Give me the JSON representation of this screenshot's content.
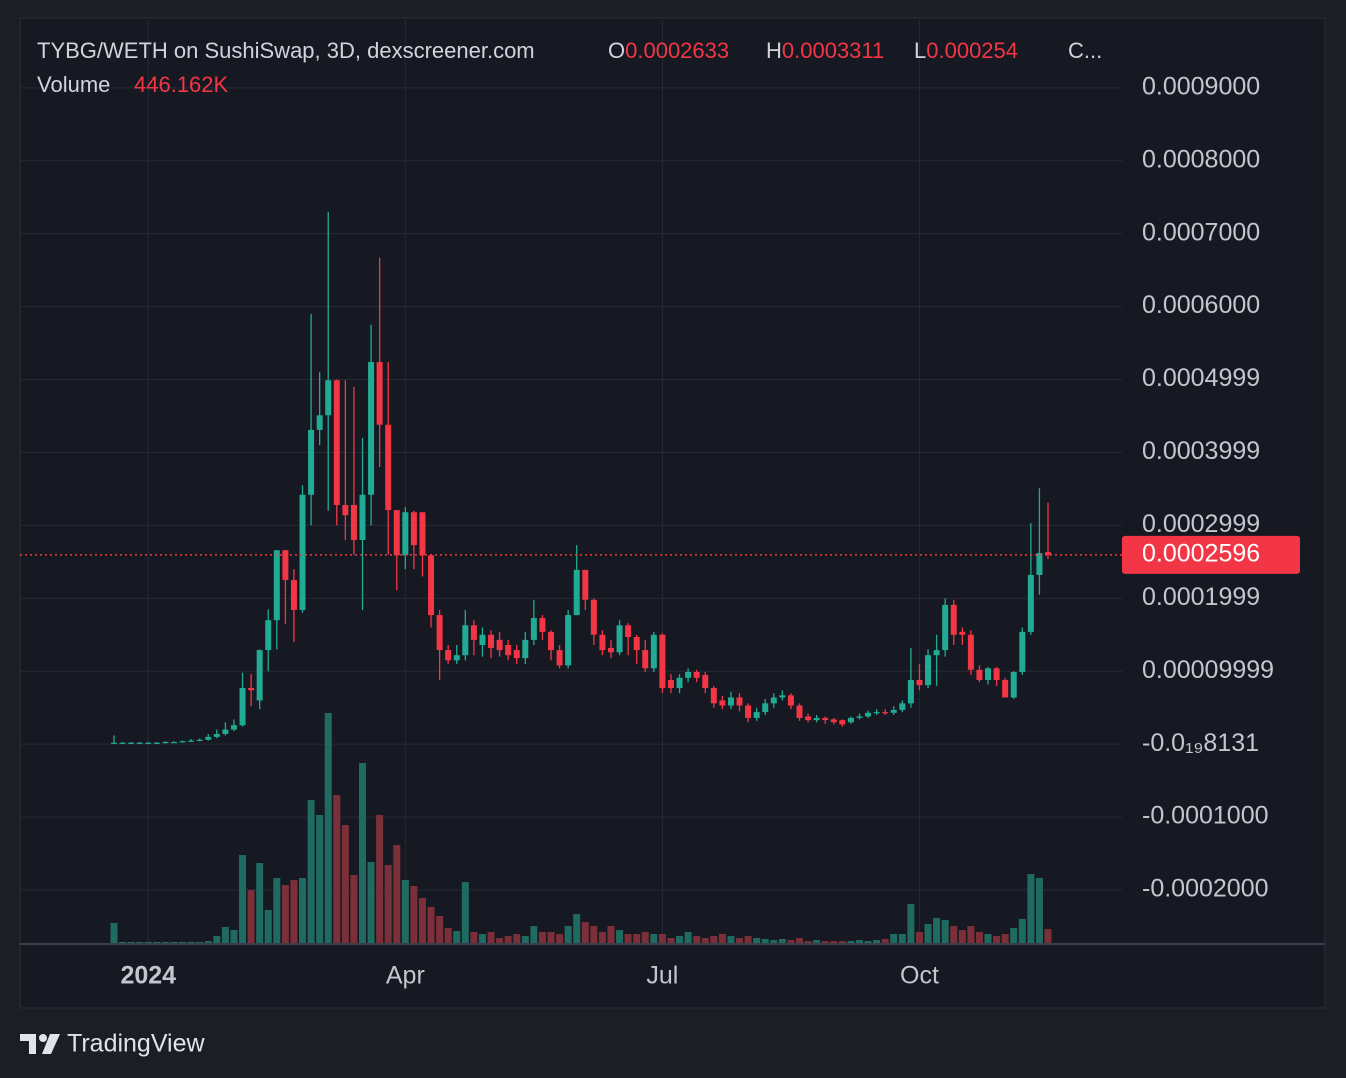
{
  "chart_data": {
    "type": "candlestick",
    "title": "TYBG/WETH on SushiSwap, 3D, dexscreener.com",
    "ohlc_labels": [
      "O",
      "H",
      "L",
      "C..."
    ],
    "volume_label": "Volume",
    "volume_value_label": "446.162K",
    "categories": [
      null,
      null,
      null,
      null,
      "2024",
      null,
      null,
      null,
      null,
      null,
      null,
      null,
      null,
      null,
      null,
      null,
      null,
      null,
      null,
      null,
      null,
      null,
      null,
      null,
      null,
      null,
      null,
      null,
      null,
      null,
      null,
      null,
      null,
      null,
      "Apr",
      null,
      null,
      null,
      null,
      null,
      null,
      null,
      null,
      null,
      null,
      null,
      null,
      null,
      null,
      null,
      null,
      null,
      null,
      null,
      null,
      null,
      null,
      null,
      null,
      null,
      null,
      null,
      null,
      null,
      "Jul",
      null,
      null,
      null,
      null,
      null,
      null,
      null,
      null,
      null,
      null,
      null,
      null,
      null,
      null,
      null,
      null,
      null,
      null,
      null,
      null,
      null,
      null,
      null,
      null,
      null,
      null,
      null,
      null,
      null,
      "Oct",
      null,
      null,
      null,
      null,
      null,
      null,
      null,
      null,
      null,
      null,
      null,
      null,
      null,
      null,
      null
    ],
    "open": [
      1.4e-06,
      2e-06,
      2e-06,
      2e-06,
      2e-06,
      2e-06,
      2e-06,
      3e-06,
      3e-06,
      4e-06,
      5e-06,
      6e-06,
      1e-05,
      1.4e-05,
      2e-05,
      2.6e-05,
      7.7e-05,
      6e-05,
      0.000129,
      0.00017,
      0.000266,
      0.000225,
      0.000184,
      0.000342,
      0.000431,
      0.000451,
      0.000499,
      0.000328,
      0.000328,
      0.00028,
      0.000342,
      0.000524,
      0.000438,
      0.000321,
      0.000259,
      0.000318,
      0.000318,
      0.000259,
      0.000177,
      0.000129,
      0.000115,
      0.000122,
      0.000163,
      0.000136,
      0.00015,
      0.000143,
      0.000136,
      0.000129,
      0.000118,
      0.000143,
      0.000173,
      0.000154,
      0.000129,
      0.000108,
      0.000177,
      0.000239,
      0.000198,
      0.00015,
      0.000132,
      0.000126,
      0.000163,
      0.000147,
      0.000129,
      0.000104,
      0.00015,
      8.8e-05,
      7.7e-05,
      9.1e-05,
      9.9e-05,
      9.5e-05,
      7.7e-05,
      6e-05,
      5.3e-05,
      6.4e-05,
      5.3e-05,
      3.6e-05,
      4.4e-05,
      5.6e-05,
      6.4e-05,
      6.7e-05,
      5.3e-05,
      3.8e-05,
      3.3e-05,
      3.6e-05,
      3.4e-05,
      3.3e-05,
      3e-05,
      3.6e-05,
      3.8e-05,
      4.3e-05,
      4.4e-05,
      4.3e-05,
      4.7e-05,
      5.6e-05,
      8.8e-05,
      8.1e-05,
      0.000122,
      0.000129,
      0.000191,
      0.000154,
      0.00015,
      0.000102,
      8.8e-05,
      0.000104,
      8.8e-05,
      6.4e-05,
      9.9e-05,
      0.000154,
      0.000232,
      0.0002633
    ],
    "high": [
      1.2e-05,
      3e-06,
      3e-06,
      3e-06,
      3e-06,
      3e-06,
      4e-06,
      4e-06,
      5e-06,
      7e-06,
      8e-06,
      1.4e-05,
      2e-05,
      3e-05,
      3.4e-05,
      9.8e-05,
      9.6e-05,
      0.00013,
      0.000185,
      0.000266,
      0.000266,
      0.00024,
      0.000355,
      0.00059,
      0.00051,
      0.00073,
      0.0005,
      0.000499,
      0.00049,
      0.00042,
      0.000575,
      0.000667,
      0.000524,
      0.000321,
      0.000325,
      0.00032,
      0.000318,
      0.000259,
      0.000184,
      0.000136,
      0.000136,
      0.000184,
      0.00017,
      0.00016,
      0.000156,
      0.000154,
      0.000143,
      0.000136,
      0.000154,
      0.000198,
      0.000177,
      0.000156,
      0.000136,
      0.000184,
      0.000273,
      0.000239,
      0.0002,
      0.000156,
      0.000143,
      0.00017,
      0.000166,
      0.00015,
      0.000143,
      0.000154,
      0.000152,
      9.6e-05,
      9.6e-05,
      0.000104,
      0.000102,
      9.9e-05,
      8e-05,
      6.6e-05,
      7.2e-05,
      7e-05,
      5.6e-05,
      5e-05,
      6.2e-05,
      7e-05,
      7.4e-05,
      7e-05,
      5.6e-05,
      4.2e-05,
      4e-05,
      3.8e-05,
      3.6e-05,
      3.4e-05,
      3.8e-05,
      4.2e-05,
      4.6e-05,
      4.8e-05,
      4.8e-05,
      5.2e-05,
      6e-05,
      0.000132,
      0.00011,
      0.00013,
      0.00015,
      0.0002,
      0.000198,
      0.00016,
      0.000156,
      0.000108,
      0.000106,
      0.000106,
      9.1e-05,
      0.0001,
      0.00016,
      0.000303,
      0.000351,
      0.0003311
    ],
    "low": [
      1e-06,
      1e-06,
      1e-06,
      1e-06,
      1e-06,
      1e-06,
      1e-06,
      2e-06,
      2e-06,
      3e-06,
      4e-06,
      5e-06,
      8e-06,
      1.2e-05,
      1.8e-05,
      2.4e-05,
      5.2e-05,
      4.8e-05,
      0.0001,
      0.00013,
      0.000165,
      0.00014,
      0.00018,
      0.0003,
      0.00041,
      0.00032,
      0.0003,
      0.00028,
      0.00026,
      0.000184,
      0.0003,
      0.00038,
      0.00026,
      0.000211,
      0.00024,
      0.00024,
      0.00023,
      0.00016,
      8.8e-05,
      0.00011,
      0.00011,
      0.000115,
      0.000122,
      0.00012,
      0.000118,
      0.00012,
      0.000115,
      0.00011,
      0.00011,
      0.000136,
      0.000143,
      0.000115,
      0.000104,
      0.000104,
      0.000177,
      0.000184,
      0.000136,
      0.000122,
      0.000118,
      0.000122,
      0.000122,
      0.00011,
      9.9e-05,
      9.9e-05,
      7e-05,
      7e-05,
      7e-05,
      8.5e-05,
      8.5e-05,
      7e-05,
      5e-05,
      4.8e-05,
      4.8e-05,
      4.5e-05,
      3e-05,
      3.2e-05,
      4e-05,
      5e-05,
      6e-05,
      4.8e-05,
      3.2e-05,
      3e-05,
      3e-05,
      2.8e-05,
      2.7e-05,
      2.4e-05,
      2.8e-05,
      3.4e-05,
      3.6e-05,
      4e-05,
      4e-05,
      4e-05,
      4.4e-05,
      5e-05,
      7.4e-05,
      7.7e-05,
      8e-05,
      0.00012,
      0.000136,
      0.000136,
      9.5e-05,
      8.5e-05,
      8.2e-05,
      8e-05,
      6.4e-05,
      6.2e-05,
      9.5e-05,
      0.00015,
      0.000205,
      0.000254
    ],
    "close": [
      2e-06,
      2e-06,
      2e-06,
      2e-06,
      2e-06,
      2e-06,
      3e-06,
      3e-06,
      4e-06,
      5e-06,
      6e-06,
      1e-05,
      1.4e-05,
      2e-05,
      2.6e-05,
      7.7e-05,
      7.4e-05,
      0.000129,
      0.00017,
      0.000266,
      0.000225,
      0.000184,
      0.000342,
      0.000431,
      0.000451,
      0.000499,
      0.000328,
      0.000314,
      0.00028,
      0.000342,
      0.000524,
      0.000438,
      0.000321,
      0.000259,
      0.000318,
      0.000273,
      0.000259,
      0.000177,
      0.000129,
      0.000115,
      0.000122,
      0.000163,
      0.000143,
      0.00015,
      0.000132,
      0.000129,
      0.000122,
      0.000118,
      0.000143,
      0.000173,
      0.000154,
      0.000129,
      0.000108,
      0.000177,
      0.000239,
      0.000198,
      0.00015,
      0.000129,
      0.000126,
      0.000163,
      0.000147,
      0.000129,
      0.000104,
      0.00015,
      7.7e-05,
      7.7e-05,
      9.1e-05,
      9.9e-05,
      9.1e-05,
      7.7e-05,
      5.6e-05,
      5.3e-05,
      6.4e-05,
      5.3e-05,
      3.6e-05,
      4.4e-05,
      5.6e-05,
      6.4e-05,
      6.7e-05,
      5.3e-05,
      3.6e-05,
      3.3e-05,
      3.6e-05,
      3.3e-05,
      3e-05,
      2.7e-05,
      3.6e-05,
      3.8e-05,
      4.3e-05,
      4.4e-05,
      4.3e-05,
      4.7e-05,
      5.6e-05,
      8.8e-05,
      8.1e-05,
      0.000122,
      0.000129,
      0.000191,
      0.00015,
      0.00015,
      0.000102,
      8.8e-05,
      0.000104,
      8.8e-05,
      6.4e-05,
      9.9e-05,
      0.000154,
      0.000232,
      0.000262,
      0.0002596
    ],
    "volume": [
      625000,
      59000,
      59000,
      59000,
      59000,
      59000,
      59000,
      59000,
      59000,
      59000,
      59000,
      89000,
      238000,
      506000,
      416000,
      2647000,
      1606000,
      2409000,
      1011000,
      1963000,
      1755000,
      1904000,
      1963000,
      4283000,
      3837000,
      6871000,
      4432000,
      3540000,
      2052000,
      5384000,
      2439000,
      3837000,
      2350000,
      2945000,
      1904000,
      1725000,
      1368000,
      1101000,
      833000,
      476000,
      387000,
      1844000,
      357000,
      297000,
      357000,
      178000,
      238000,
      297000,
      238000,
      535000,
      357000,
      357000,
      297000,
      535000,
      892000,
      654000,
      535000,
      357000,
      535000,
      416000,
      297000,
      297000,
      357000,
      297000,
      297000,
      178000,
      238000,
      357000,
      238000,
      178000,
      238000,
      297000,
      238000,
      178000,
      238000,
      178000,
      149000,
      119000,
      149000,
      119000,
      178000,
      89000,
      119000,
      89000,
      89000,
      89000,
      89000,
      119000,
      89000,
      119000,
      149000,
      297000,
      297000,
      1190000,
      357000,
      595000,
      773000,
      714000,
      535000,
      416000,
      535000,
      357000,
      297000,
      238000,
      297000,
      476000,
      744000,
      2082000,
      1963000,
      446162
    ],
    "ylim": [
      -0.000274,
      0.000993
    ],
    "yticks": [
      {
        "value": 0.0009,
        "label": "0.0009000"
      },
      {
        "value": 0.0008,
        "label": "0.0008000"
      },
      {
        "value": 0.0007,
        "label": "0.0007000"
      },
      {
        "value": 0.0006,
        "label": "0.0006000"
      },
      {
        "value": 0.0005,
        "label": "0.0004999"
      },
      {
        "value": 0.0004,
        "label": "0.0003999"
      },
      {
        "value": 0.0003,
        "label": "0.0002999"
      },
      {
        "value": 0.0002,
        "label": "0.0001999"
      },
      {
        "value": 0.0001,
        "label": "0.00009999"
      },
      {
        "value": 0,
        "label": "-0.0₁₉8131"
      },
      {
        "value": -0.0001,
        "label": "-0.0001000"
      },
      {
        "value": -0.0002,
        "label": "-0.0002000"
      }
    ],
    "grid": true,
    "up_color": "#22ab94",
    "down_color": "#f23645",
    "up_volume_color": "#1f6b61",
    "down_volume_color": "#7b2f39"
  },
  "brand": "TradingView"
}
